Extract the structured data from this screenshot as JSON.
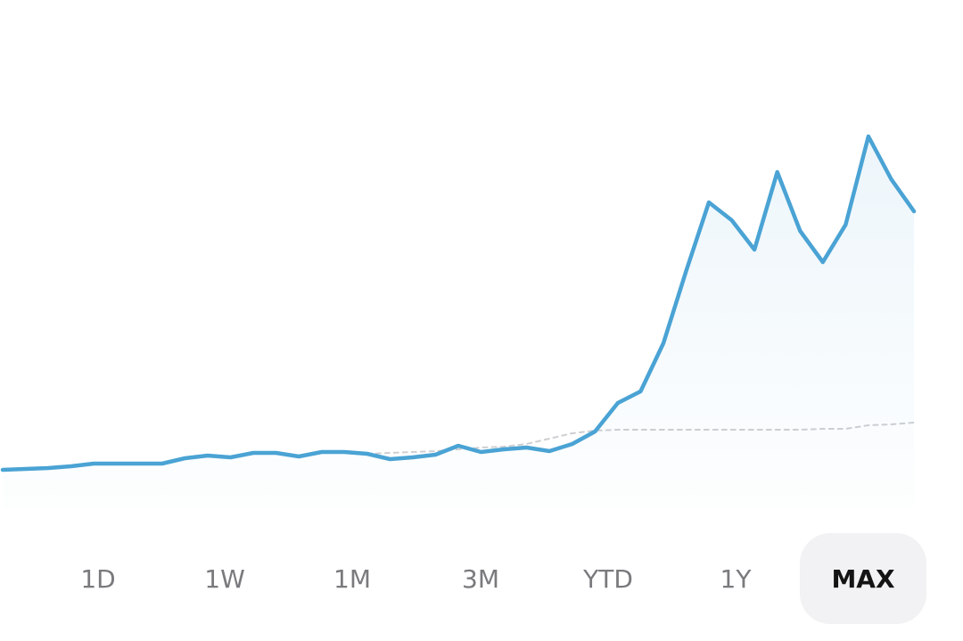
{
  "chart_data": {
    "type": "line",
    "ylim": [
      0,
      570
    ],
    "series": [
      {
        "color": "#4aa3d4",
        "style": "solid",
        "fill": true,
        "values": [
          43,
          44,
          45,
          47,
          50,
          50,
          50,
          50,
          56,
          59,
          57,
          62,
          62,
          58,
          63,
          63,
          61,
          55,
          57,
          60,
          70,
          63,
          66,
          68,
          64,
          72,
          86,
          118,
          131,
          185,
          266,
          343,
          323,
          290,
          377,
          311,
          276,
          318,
          417,
          369,
          333
        ]
      },
      {
        "color": "#cfcfd3",
        "style": "dashed",
        "fill": false,
        "values": [
          null,
          null,
          null,
          null,
          null,
          null,
          null,
          null,
          null,
          null,
          null,
          null,
          null,
          null,
          null,
          null,
          61,
          62,
          63,
          64,
          66,
          68,
          69,
          72,
          78,
          84,
          87,
          88,
          88,
          88,
          88,
          88,
          88,
          88,
          88,
          88,
          89,
          89,
          93,
          94,
          96
        ]
      }
    ]
  },
  "range_buttons": {
    "labels": [
      "1D",
      "1W",
      "1M",
      "3M",
      "YTD",
      "1Y",
      "MAX"
    ],
    "selected": 6
  }
}
